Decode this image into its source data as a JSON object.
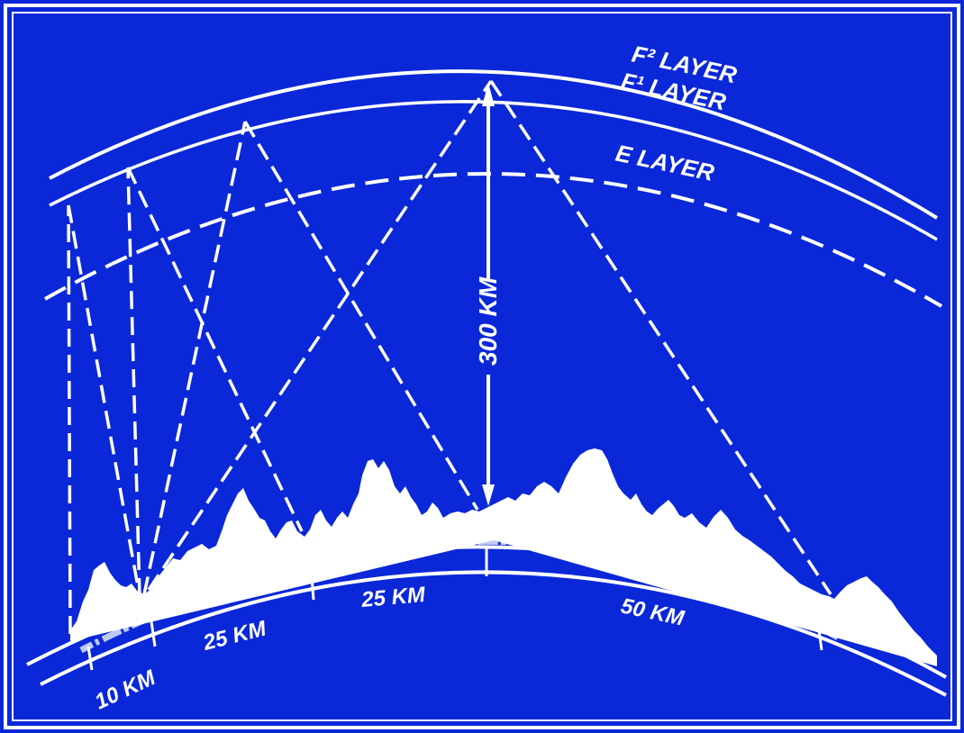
{
  "colors": {
    "background": "#0a28d8",
    "border": "#ffffff",
    "ink": "#ffffff"
  },
  "layers": {
    "f2": "F² LAYER",
    "f1": "F¹ LAYER",
    "e": "E LAYER"
  },
  "height_label": "300 KM",
  "distance_labels": {
    "first": "10 KM",
    "second": "25 KM",
    "third": "25 KM",
    "fourth": "50 KM"
  }
}
